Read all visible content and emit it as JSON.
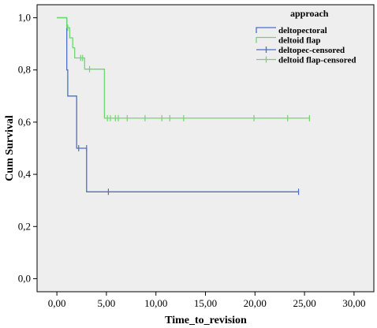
{
  "chart_data": {
    "type": "line",
    "subtype": "kaplan-meier",
    "title": "",
    "xlabel": "Time_to_revision",
    "ylabel": "Cum Survival",
    "xlim": [
      -2,
      32
    ],
    "ylim": [
      -0.05,
      1.05
    ],
    "x_ticks": [
      0,
      5,
      10,
      15,
      20,
      25,
      30
    ],
    "x_tick_labels": [
      "0,00",
      "5,00",
      "10,00",
      "15,00",
      "20,00",
      "25,00",
      "30,00"
    ],
    "y_ticks": [
      0,
      0.2,
      0.4,
      0.6,
      0.8,
      1.0
    ],
    "y_tick_labels": [
      "0,0",
      "0,2",
      "0,4",
      "0,6",
      "0,8",
      "1,0"
    ],
    "grid": false,
    "background": "#eeeeee",
    "legend": {
      "title": "approach",
      "position": "top-right",
      "entries": [
        "deltopectoral",
        "deltoid flap",
        "deltopec-censored",
        "deltoid flap-censored"
      ]
    },
    "series": [
      {
        "name": "deltopectoral",
        "color": "#4b6fc7",
        "steps": [
          [
            0,
            1.0
          ],
          [
            1.0,
            1.0
          ],
          [
            1.0,
            0.8
          ],
          [
            1.1,
            0.8
          ],
          [
            1.1,
            0.7
          ],
          [
            2.0,
            0.7
          ],
          [
            2.0,
            0.5
          ],
          [
            3.0,
            0.5
          ],
          [
            3.0,
            0.333
          ],
          [
            24.4,
            0.333
          ]
        ],
        "censored": [
          [
            2.2,
            0.5
          ],
          [
            3.0,
            0.5
          ],
          [
            5.2,
            0.333
          ],
          [
            24.4,
            0.333
          ]
        ]
      },
      {
        "name": "deltoid flap",
        "color": "#6fd66f",
        "steps": [
          [
            0,
            1.0
          ],
          [
            1.0,
            1.0
          ],
          [
            1.0,
            0.962
          ],
          [
            1.3,
            0.962
          ],
          [
            1.3,
            0.923
          ],
          [
            1.6,
            0.923
          ],
          [
            1.6,
            0.885
          ],
          [
            1.8,
            0.885
          ],
          [
            1.8,
            0.846
          ],
          [
            2.8,
            0.846
          ],
          [
            2.8,
            0.803
          ],
          [
            4.8,
            0.803
          ],
          [
            4.8,
            0.615
          ],
          [
            25.5,
            0.615
          ]
        ],
        "censored": [
          [
            1.1,
            0.962
          ],
          [
            2.4,
            0.846
          ],
          [
            2.6,
            0.846
          ],
          [
            3.3,
            0.803
          ],
          [
            5.1,
            0.615
          ],
          [
            5.4,
            0.615
          ],
          [
            5.9,
            0.615
          ],
          [
            6.2,
            0.615
          ],
          [
            7.1,
            0.615
          ],
          [
            8.9,
            0.615
          ],
          [
            10.6,
            0.615
          ],
          [
            11.4,
            0.615
          ],
          [
            12.8,
            0.615
          ],
          [
            19.9,
            0.615
          ],
          [
            23.3,
            0.615
          ],
          [
            25.5,
            0.615
          ]
        ]
      }
    ]
  }
}
